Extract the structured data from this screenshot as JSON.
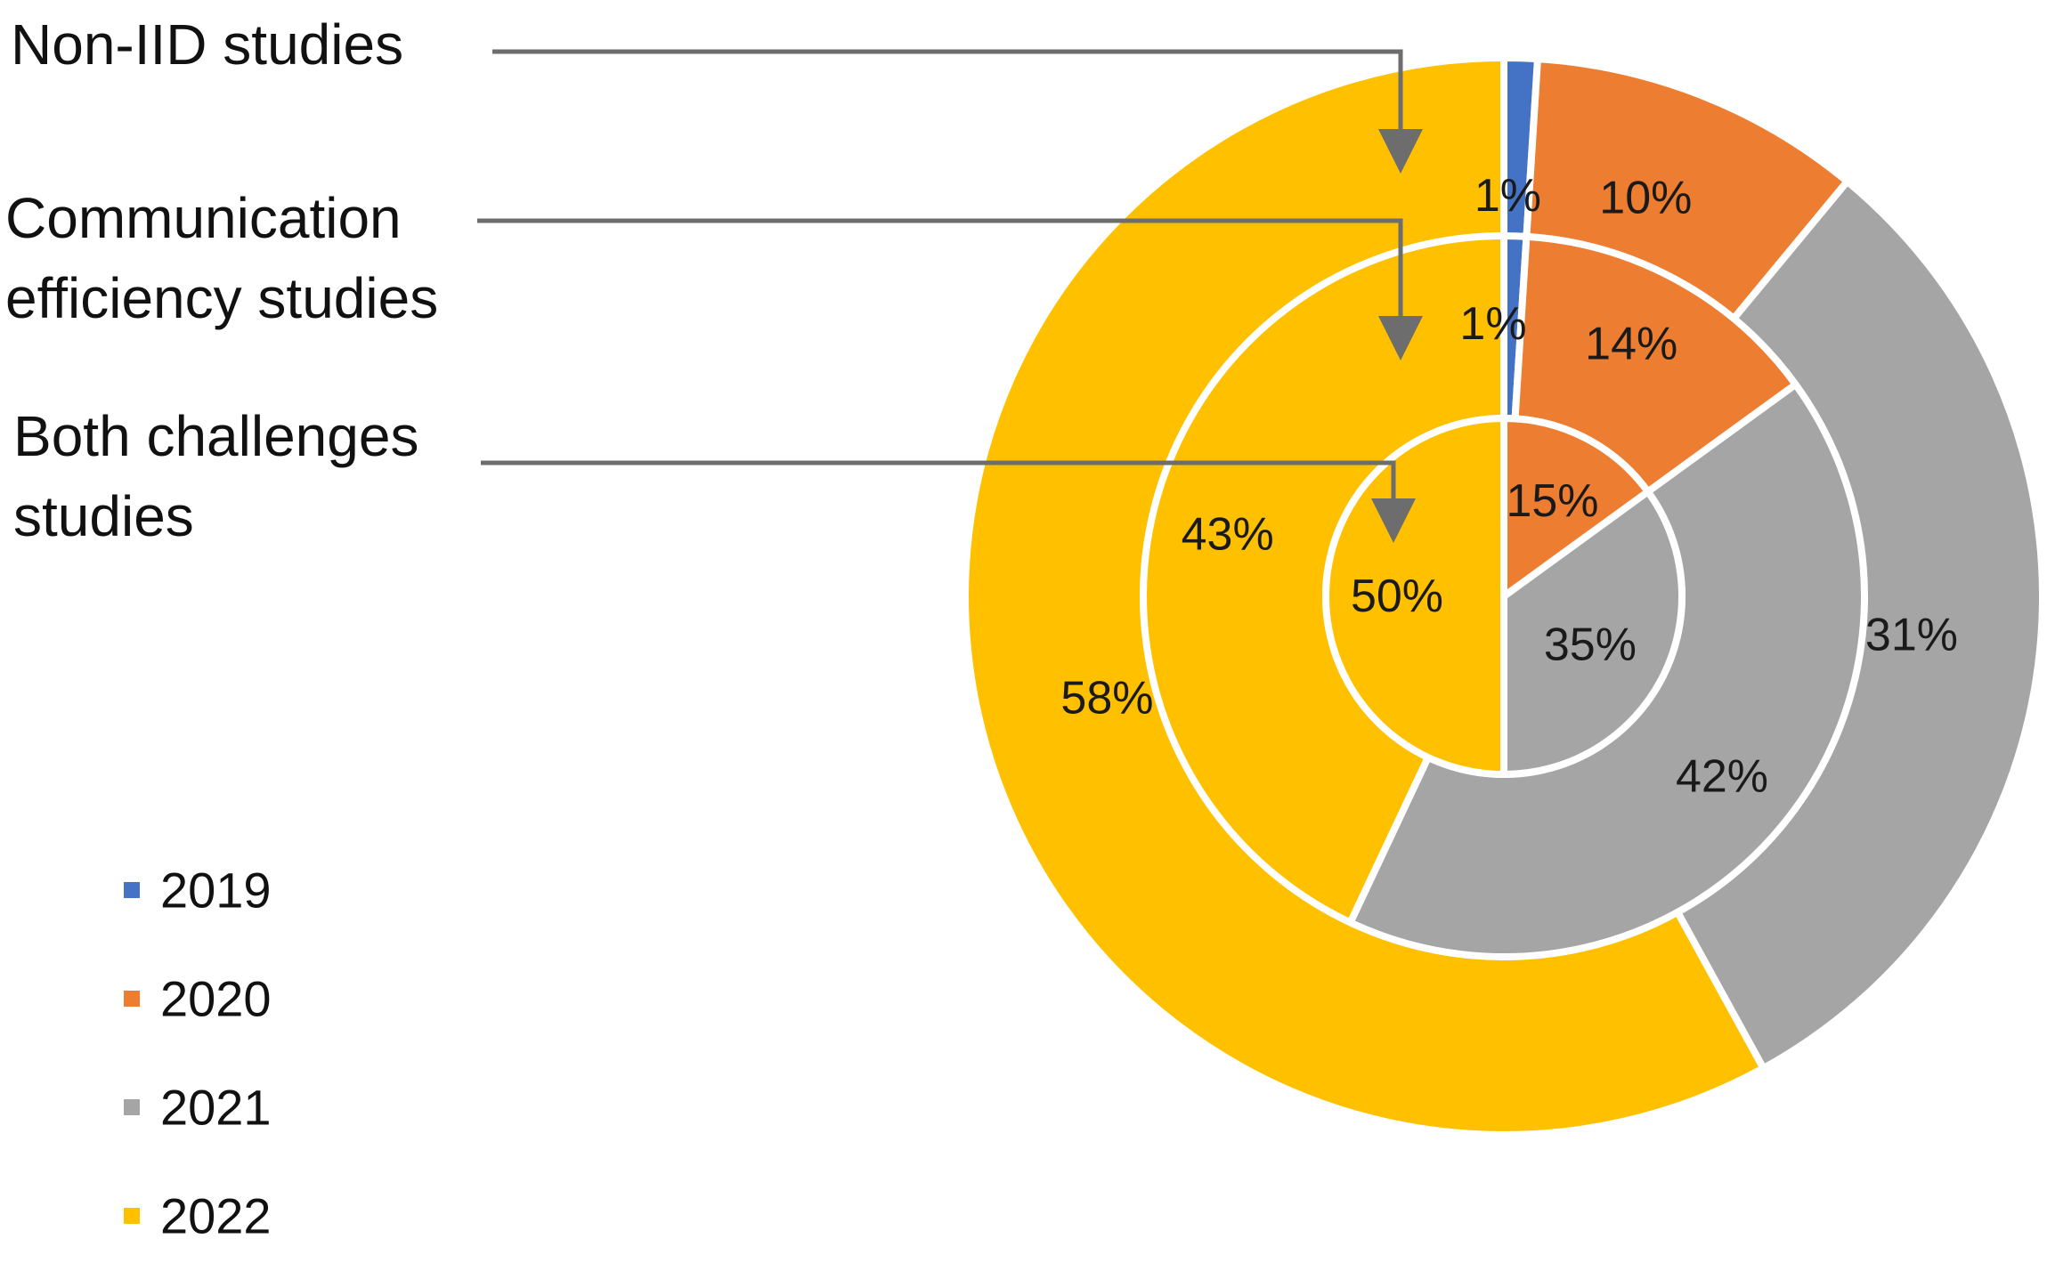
{
  "chart_data": {
    "type": "pie",
    "subtype": "multi-level-donut",
    "title": "",
    "categories": [
      "2019",
      "2020",
      "2021",
      "2022"
    ],
    "colors": [
      "#4472C4",
      "#ED7D31",
      "#A5A5A5",
      "#FFC000"
    ],
    "series": [
      {
        "name": "Non-IID studies",
        "ring": "outer",
        "values": [
          1,
          10,
          31,
          58
        ],
        "labels": [
          "1%",
          "10%",
          "31%",
          "58%"
        ]
      },
      {
        "name": "Communication efficiency studies",
        "ring": "middle",
        "values": [
          1,
          14,
          42,
          43
        ],
        "labels": [
          "1%",
          "14%",
          "42%",
          "43%"
        ]
      },
      {
        "name": "Both challenges studies",
        "ring": "inner",
        "values": [
          0,
          15,
          35,
          50
        ],
        "labels": [
          "",
          "15%",
          "35%",
          "50%"
        ]
      }
    ],
    "callouts": [
      {
        "lines": [
          "Non-IID studies"
        ]
      },
      {
        "lines": [
          "Communication",
          "efficiency studies"
        ]
      },
      {
        "lines": [
          "Both challenges",
          "studies"
        ]
      }
    ],
    "legend": {
      "position": "bottom-left",
      "entries": [
        "2019",
        "2020",
        "2021",
        "2022"
      ]
    }
  }
}
